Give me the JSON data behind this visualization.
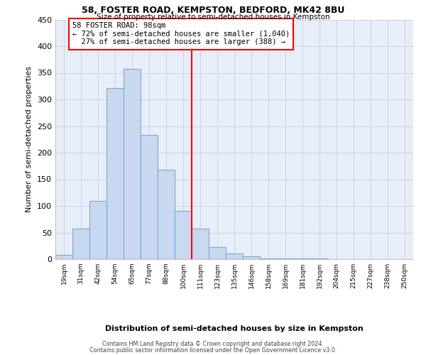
{
  "title": "58, FOSTER ROAD, KEMPSTON, BEDFORD, MK42 8BU",
  "subtitle": "Size of property relative to semi-detached houses in Kempston",
  "xlabel": "Distribution of semi-detached houses by size in Kempston",
  "ylabel": "Number of semi-detached properties",
  "bin_labels": [
    "19sqm",
    "31sqm",
    "42sqm",
    "54sqm",
    "65sqm",
    "77sqm",
    "88sqm",
    "100sqm",
    "111sqm",
    "123sqm",
    "135sqm",
    "146sqm",
    "158sqm",
    "169sqm",
    "181sqm",
    "192sqm",
    "204sqm",
    "215sqm",
    "227sqm",
    "238sqm",
    "250sqm"
  ],
  "bar_heights": [
    8,
    57,
    110,
    322,
    357,
    233,
    168,
    91,
    57,
    23,
    11,
    5,
    2,
    1,
    1,
    1,
    0,
    0,
    0,
    0,
    0
  ],
  "bar_color": "#c8d8f0",
  "bar_edge_color": "#7fa8cc",
  "reference_line_x": 7.5,
  "reference_label": "58 FOSTER ROAD: 98sqm",
  "smaller_pct": 72,
  "smaller_count": 1040,
  "larger_pct": 27,
  "larger_count": 388,
  "ylim": [
    0,
    450
  ],
  "yticks": [
    0,
    50,
    100,
    150,
    200,
    250,
    300,
    350,
    400,
    450
  ],
  "footnote1": "Contains HM Land Registry data © Crown copyright and database right 2024.",
  "footnote2": "Contains public sector information licensed under the Open Government Licence v3.0.",
  "bg_color": "#e8eef8",
  "grid_color": "#c8d4e8"
}
